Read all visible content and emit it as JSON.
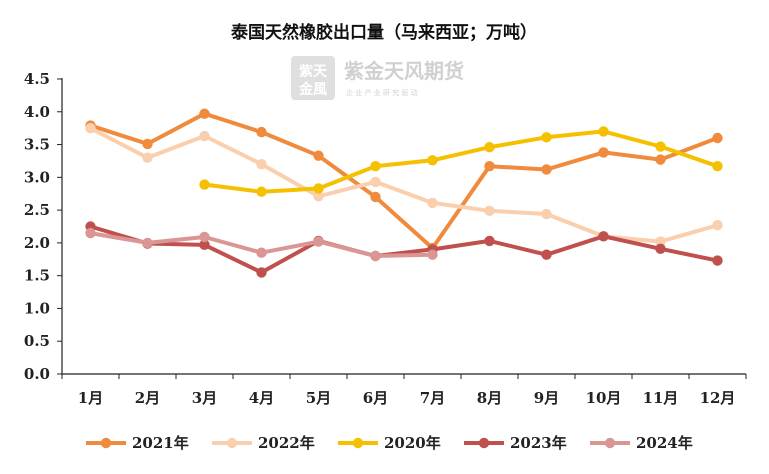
{
  "chart_data": {
    "type": "line",
    "title": "泰国天然橡胶出口量（马来西亚；万吨）",
    "xlabel": "",
    "ylabel": "",
    "categories": [
      "1月",
      "2月",
      "3月",
      "4月",
      "5月",
      "6月",
      "7月",
      "8月",
      "9月",
      "10月",
      "11月",
      "12月"
    ],
    "yticks": [
      "0.0",
      "0.5",
      "1.0",
      "1.5",
      "2.0",
      "2.5",
      "3.0",
      "3.5",
      "4.0",
      "4.5"
    ],
    "ylim": [
      0,
      4.5
    ],
    "grid": false,
    "legend": "bottom",
    "series": [
      {
        "name": "2021年",
        "color": "#f08a3c",
        "values": [
          3.79,
          3.51,
          3.97,
          3.69,
          3.33,
          2.7,
          1.92,
          3.17,
          3.12,
          3.38,
          3.27,
          3.6
        ]
      },
      {
        "name": "2022年",
        "color": "#f9cfae",
        "values": [
          3.75,
          3.3,
          3.63,
          3.2,
          2.71,
          2.93,
          2.61,
          2.49,
          2.44,
          2.1,
          2.02,
          2.27
        ]
      },
      {
        "name": "2020年",
        "color": "#f5c000",
        "values": [
          null,
          null,
          2.89,
          2.78,
          2.83,
          3.17,
          3.26,
          3.46,
          3.61,
          3.7,
          3.47,
          3.17
        ]
      },
      {
        "name": "2023年",
        "color": "#c0504d",
        "values": [
          2.25,
          1.99,
          1.97,
          1.55,
          2.03,
          1.8,
          1.9,
          2.03,
          1.82,
          2.1,
          1.91,
          1.73
        ]
      },
      {
        "name": "2024年",
        "color": "#d99694",
        "values": [
          2.15,
          2.0,
          2.09,
          1.85,
          2.02,
          1.8,
          1.82,
          null,
          null,
          null,
          null,
          null
        ]
      }
    ]
  },
  "watermark": {
    "logo_text": "紫金天风期货",
    "sub_text": "企 业 产 业 研 究 驱 动"
  }
}
